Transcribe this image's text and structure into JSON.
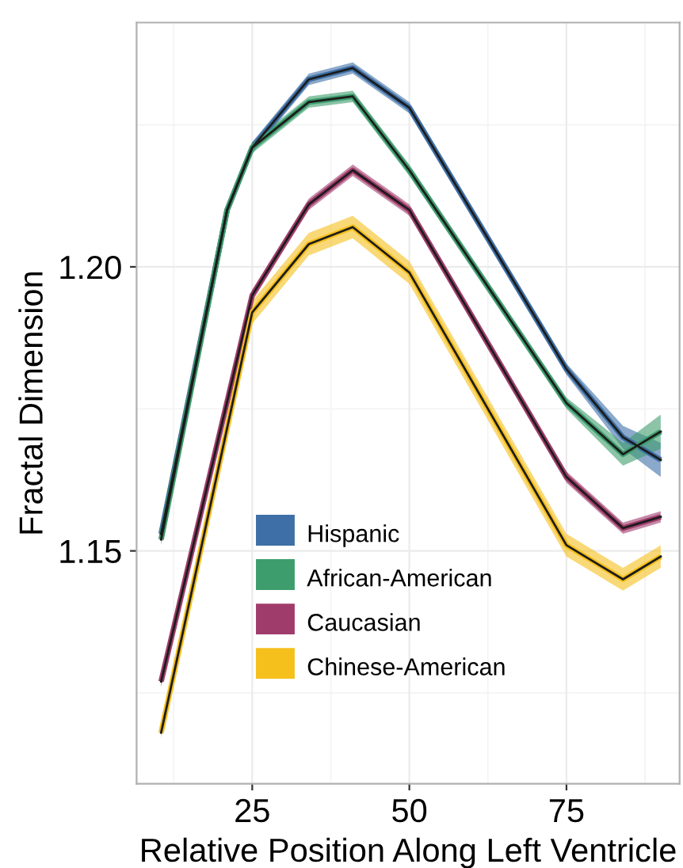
{
  "chart_data": {
    "type": "line",
    "xlabel": "Relative Position Along Left Ventricle",
    "ylabel": "Fractal Dimension",
    "xlim": [
      6.6,
      93
    ],
    "ylim": [
      1.109,
      1.243
    ],
    "xticks": [
      25,
      50,
      75
    ],
    "yticks": [
      1.15,
      {
        "value": 1.2,
        "label": "1.20"
      }
    ],
    "grid": true,
    "legend": "bottom",
    "marker": "none",
    "line_style": "solid",
    "series": [
      {
        "name": "Hispanic",
        "color": "#3e6fa6",
        "x": [
          10.5,
          21,
          25,
          34,
          41,
          50,
          75,
          84,
          90
        ],
        "values": [
          1.153,
          1.21,
          1.221,
          1.233,
          1.235,
          1.228,
          1.182,
          1.17,
          1.166
        ],
        "lower": [
          1.152,
          1.209,
          1.22,
          1.232,
          1.234,
          1.227,
          1.181,
          1.168,
          1.163
        ],
        "upper": [
          1.154,
          1.211,
          1.222,
          1.234,
          1.236,
          1.229,
          1.183,
          1.172,
          1.169
        ]
      },
      {
        "name": "African-American",
        "color": "#3d9d6d",
        "x": [
          10.5,
          21,
          25,
          34,
          41,
          50,
          75,
          84,
          90
        ],
        "values": [
          1.152,
          1.21,
          1.221,
          1.229,
          1.23,
          1.217,
          1.176,
          1.167,
          1.171
        ],
        "lower": [
          1.151,
          1.209,
          1.22,
          1.228,
          1.229,
          1.216,
          1.175,
          1.165,
          1.168
        ],
        "upper": [
          1.153,
          1.211,
          1.222,
          1.23,
          1.231,
          1.218,
          1.177,
          1.169,
          1.174
        ]
      },
      {
        "name": "Caucasian",
        "color": "#a03c6c",
        "x": [
          10.5,
          25,
          34,
          41,
          50,
          75,
          84,
          90
        ],
        "values": [
          1.127,
          1.195,
          1.211,
          1.217,
          1.21,
          1.163,
          1.154,
          1.156
        ],
        "lower": [
          1.126,
          1.194,
          1.21,
          1.216,
          1.209,
          1.162,
          1.153,
          1.155
        ],
        "upper": [
          1.128,
          1.196,
          1.212,
          1.218,
          1.211,
          1.164,
          1.155,
          1.157
        ]
      },
      {
        "name": "Chinese-American",
        "color": "#f5bf1c",
        "x": [
          10.5,
          25,
          34,
          41,
          50,
          75,
          84,
          90
        ],
        "values": [
          1.118,
          1.192,
          1.204,
          1.207,
          1.199,
          1.151,
          1.145,
          1.149
        ],
        "lower": [
          1.117,
          1.19,
          1.202,
          1.205,
          1.197,
          1.149,
          1.143,
          1.147
        ],
        "upper": [
          1.119,
          1.194,
          1.206,
          1.209,
          1.201,
          1.153,
          1.147,
          1.151
        ]
      }
    ]
  }
}
